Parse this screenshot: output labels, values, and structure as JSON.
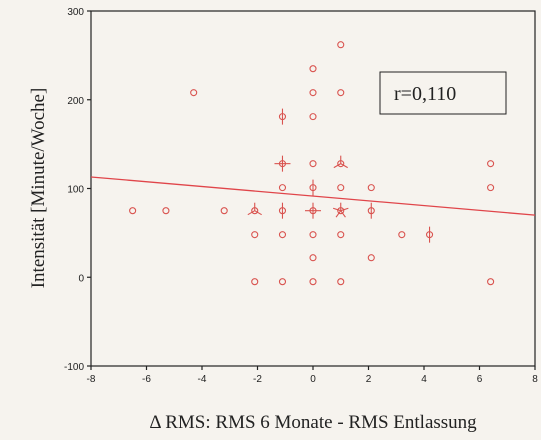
{
  "chart_data": {
    "type": "scatter",
    "title": "",
    "xlabel": "Δ RMS: RMS 6 Monate - RMS Entlassung",
    "ylabel": "Intensität [Minute/Woche]",
    "xlim": [
      -8,
      8
    ],
    "ylim": [
      -100,
      300
    ],
    "x_ticks": [
      -8,
      -6,
      -4,
      -2,
      0,
      2,
      4,
      6,
      8
    ],
    "y_ticks": [
      -100,
      0,
      100,
      200,
      300
    ],
    "grid": false,
    "legend": "none",
    "annotation": "r=0,110",
    "colors": {
      "points": "#d9534f",
      "line": "#e0454a",
      "frame": "#222222",
      "background": "#f6f3ee"
    },
    "regression_line": {
      "x": [
        -8,
        8
      ],
      "y": [
        113,
        70
      ]
    },
    "points": [
      {
        "x": -6.5,
        "y": 75,
        "count": 1
      },
      {
        "x": -5.3,
        "y": 75,
        "count": 1
      },
      {
        "x": -4.3,
        "y": 208,
        "count": 1
      },
      {
        "x": -3.2,
        "y": 75,
        "count": 1
      },
      {
        "x": -2.1,
        "y": 75,
        "count": 3
      },
      {
        "x": -2.1,
        "y": 48,
        "count": 1
      },
      {
        "x": -2.1,
        "y": -5,
        "count": 1
      },
      {
        "x": -1.1,
        "y": 181,
        "count": 2
      },
      {
        "x": -1.1,
        "y": 128,
        "count": 4
      },
      {
        "x": -1.1,
        "y": 101,
        "count": 1
      },
      {
        "x": -1.1,
        "y": 75,
        "count": 2
      },
      {
        "x": -1.1,
        "y": 48,
        "count": 1
      },
      {
        "x": -1.1,
        "y": -5,
        "count": 1
      },
      {
        "x": 0,
        "y": 235,
        "count": 1
      },
      {
        "x": 0,
        "y": 208,
        "count": 1
      },
      {
        "x": 0,
        "y": 181,
        "count": 1
      },
      {
        "x": 0,
        "y": 128,
        "count": 1
      },
      {
        "x": 0,
        "y": 101,
        "count": 2
      },
      {
        "x": 0,
        "y": 75,
        "count": 4
      },
      {
        "x": 0,
        "y": 48,
        "count": 1
      },
      {
        "x": 0,
        "y": 22,
        "count": 1
      },
      {
        "x": 0,
        "y": -5,
        "count": 1
      },
      {
        "x": 1.0,
        "y": 262,
        "count": 1
      },
      {
        "x": 1.0,
        "y": 208,
        "count": 1
      },
      {
        "x": 1.0,
        "y": 128,
        "count": 3
      },
      {
        "x": 1.0,
        "y": 101,
        "count": 1
      },
      {
        "x": 1.0,
        "y": 75,
        "count": 5
      },
      {
        "x": 1.0,
        "y": 48,
        "count": 1
      },
      {
        "x": 1.0,
        "y": -5,
        "count": 1
      },
      {
        "x": 2.1,
        "y": 101,
        "count": 1
      },
      {
        "x": 2.1,
        "y": 75,
        "count": 2
      },
      {
        "x": 2.1,
        "y": 22,
        "count": 1
      },
      {
        "x": 3.2,
        "y": 48,
        "count": 1
      },
      {
        "x": 4.2,
        "y": 48,
        "count": 2
      },
      {
        "x": 6.4,
        "y": 128,
        "count": 1
      },
      {
        "x": 6.4,
        "y": 101,
        "count": 1
      },
      {
        "x": 6.4,
        "y": -5,
        "count": 1
      }
    ]
  }
}
